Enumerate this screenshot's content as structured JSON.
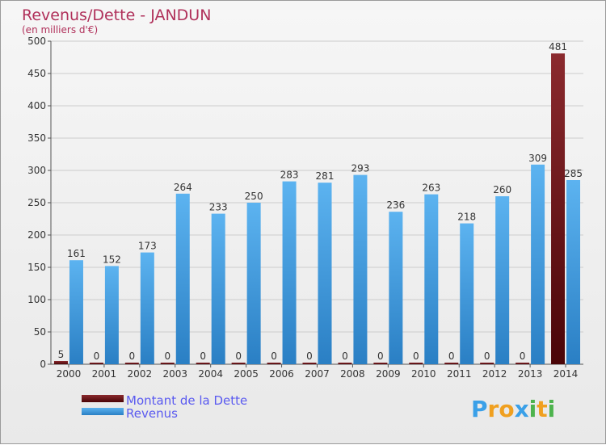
{
  "chart_data": {
    "type": "bar",
    "title": "Revenus/Dette - JANDUN",
    "subtitle": "(en milliers d'€)",
    "categories": [
      "2000",
      "2001",
      "2002",
      "2003",
      "2004",
      "2005",
      "2006",
      "2007",
      "2008",
      "2009",
      "2010",
      "2011",
      "2012",
      "2013",
      "2014"
    ],
    "series": [
      {
        "name": "Montant de la Dette",
        "color": "#6b0a10",
        "values": [
          5,
          0,
          0,
          0,
          0,
          0,
          0,
          0,
          0,
          0,
          0,
          0,
          0,
          0,
          481
        ]
      },
      {
        "name": "Revenus",
        "color": "#3d9ee6",
        "values": [
          161,
          152,
          173,
          264,
          233,
          250,
          283,
          281,
          293,
          236,
          263,
          218,
          260,
          309,
          285
        ]
      }
    ],
    "yticks": [
      0,
      50,
      100,
      150,
      200,
      250,
      300,
      350,
      400,
      450,
      500
    ],
    "ylim": [
      0,
      500
    ],
    "grid": true,
    "legend": "bottom-left"
  },
  "branding": {
    "logo_letters": [
      "P",
      "r",
      "o",
      "x",
      "i",
      "t",
      "i"
    ],
    "logo_colors": [
      "#3aa0e8",
      "#f0a020",
      "#f0a020",
      "#3aa0e8",
      "#4db34d",
      "#f0a020",
      "#4db34d"
    ]
  }
}
